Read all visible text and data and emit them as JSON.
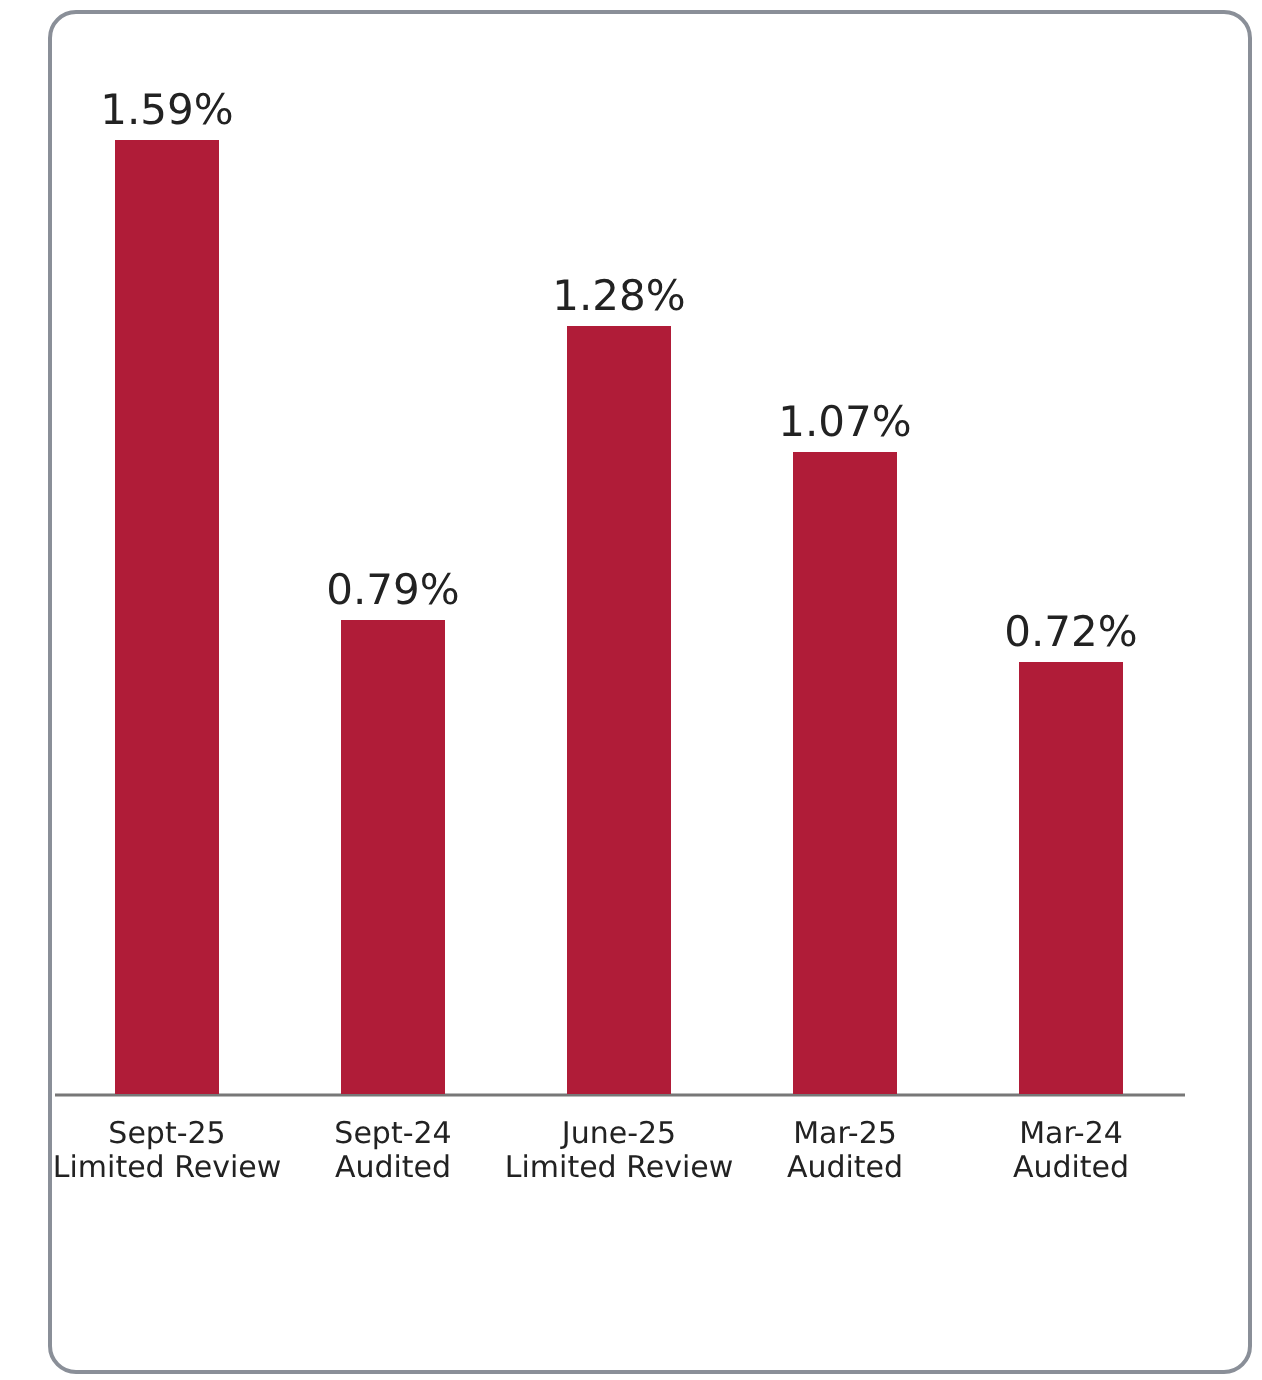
{
  "chart_data": {
    "type": "bar",
    "categories": [
      "Sept-25\nLimited Review",
      "Sept-24\nAudited",
      "June-25\nLimited Review",
      "Mar-25\nAudited",
      "Mar-24\nAudited"
    ],
    "values": [
      1.59,
      0.79,
      1.28,
      1.07,
      0.72
    ],
    "value_labels": [
      "1.59%",
      "0.79%",
      "1.28%",
      "1.07%",
      "0.72%"
    ],
    "color": "#b01c38"
  }
}
